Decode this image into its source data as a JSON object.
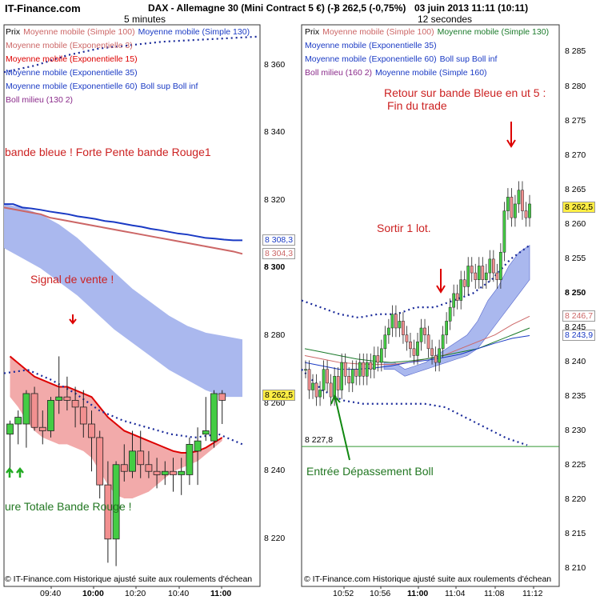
{
  "header": {
    "site": "IT-Finance.com",
    "title": "DAX - Allemagne 30 (Mini Contract 5 €) (-)",
    "price": "8 262,5 (-0,75%)",
    "date": "03 juin 2013 11:11 (10:11)",
    "timeframe_left": "5 minutes",
    "timeframe_right": "12 secondes"
  },
  "legend_left": [
    {
      "text": "Prix",
      "color": "#000000"
    },
    {
      "text": "Moyenne mobile (Simple 100)",
      "color": "#cc6666"
    },
    {
      "text": "Moyenne mobile (Simple 130)",
      "color": "#1a3ac4"
    },
    {
      "text": "Moyenne mobile (Exponentielle 3)",
      "color": "#cc6666"
    },
    {
      "text": "Moyenne mobile (Exponentielle 15)",
      "color": "#dd0000"
    },
    {
      "text": "Moyenne mobile (Exponentielle 35)",
      "color": "#1a3ac4"
    },
    {
      "text": "Moyenne mobile (Exponentielle 60)",
      "color": "#1a3ac4"
    },
    {
      "text": "Boll sup Boll inf",
      "color": "#1a3ac4"
    },
    {
      "text": "Boll milieu (130 2)",
      "color": "#8a2a8a"
    }
  ],
  "legend_right": [
    {
      "text": "Prix",
      "color": "#000000"
    },
    {
      "text": "Moyenne mobile (Simple 100)",
      "color": "#cc6666"
    },
    {
      "text": "Moyenne mobile (Simple 130)",
      "color": "#1a7a2a"
    },
    {
      "text": "Moyenne mobile (Exponentielle 35)",
      "color": "#1a3ac4"
    },
    {
      "text": "Moyenne mobile (Exponentielle 60)",
      "color": "#1a3ac4"
    },
    {
      "text": "Boll sup Boll inf",
      "color": "#1a3ac4"
    },
    {
      "text": "Boll milieu (160 2)",
      "color": "#8a2a8a"
    },
    {
      "text": "Moyenne mobile (Simple 160)",
      "color": "#1a3ac4"
    }
  ],
  "annotations": {
    "left_band": "bande bleue ! Forte Pente bande Rouge1",
    "left_signal": "Signal de vente !",
    "left_bottom": "ure Totale Bande Rouge !",
    "right_top_1": "Retour sur bande Bleue en ut 5 :",
    "right_top_2": "Fin du trade",
    "right_sortir": "Sortir 1 lot.",
    "right_entree": "Entrée Dépassement Boll"
  },
  "footer": {
    "left": "© IT-Finance.com  Historique ajusté suite aux roulements d'échean",
    "right": "© IT-Finance.com  Historique ajusté suite aux roulements d'échean"
  },
  "colors": {
    "up_candle": "#44cc44",
    "down_candle": "#f29090",
    "band_blue": "#aab8ee",
    "band_red": "#f2aaaa",
    "ema_red": "#dd0000",
    "boll_dots": "#1a2a9a",
    "sma130": "#1a3ac4",
    "sma100": "#cc6666"
  },
  "chart_data": [
    {
      "type": "candlestick",
      "title": "5 minutes",
      "x_ticks": [
        "09:40",
        "10:00",
        "10:20",
        "10:40",
        "11:00"
      ],
      "x_ticks_bold": [
        "10:00",
        "11:00"
      ],
      "y_ticks": [
        "8 360",
        "8 340",
        "8 320",
        "8 300",
        "8 280",
        "8 260",
        "8 240",
        "8 220"
      ],
      "y_ticks_bold": [
        "8 300"
      ],
      "ylim": [
        8206,
        8372
      ],
      "price_tags": [
        {
          "value": "8 308,3",
          "color": "#1a3ac4"
        },
        {
          "value": "8 304,3",
          "color": "#cc6666"
        },
        {
          "value": "8 262,5",
          "color": "#000000",
          "bg": "#ffee44"
        }
      ],
      "candles": [
        {
          "o": 8251,
          "h": 8255,
          "l": 8239,
          "c": 8254
        },
        {
          "o": 8254,
          "h": 8258,
          "l": 8248,
          "c": 8256
        },
        {
          "o": 8254,
          "h": 8264,
          "l": 8247,
          "c": 8263
        },
        {
          "o": 8263,
          "h": 8265,
          "l": 8252,
          "c": 8253
        },
        {
          "o": 8253,
          "h": 8258,
          "l": 8248,
          "c": 8252
        },
        {
          "o": 8252,
          "h": 8262,
          "l": 8250,
          "c": 8261
        },
        {
          "o": 8261,
          "h": 8274,
          "l": 8257,
          "c": 8262
        },
        {
          "o": 8262,
          "h": 8268,
          "l": 8258,
          "c": 8261
        },
        {
          "o": 8261,
          "h": 8265,
          "l": 8253,
          "c": 8259
        },
        {
          "o": 8259,
          "h": 8264,
          "l": 8250,
          "c": 8254
        },
        {
          "o": 8254,
          "h": 8258,
          "l": 8240,
          "c": 8250
        },
        {
          "o": 8250,
          "h": 8252,
          "l": 8232,
          "c": 8236
        },
        {
          "o": 8236,
          "h": 8243,
          "l": 8213,
          "c": 8220
        },
        {
          "o": 8220,
          "h": 8243,
          "l": 8212,
          "c": 8242
        },
        {
          "o": 8242,
          "h": 8248,
          "l": 8237,
          "c": 8240
        },
        {
          "o": 8240,
          "h": 8252,
          "l": 8238,
          "c": 8246
        },
        {
          "o": 8246,
          "h": 8252,
          "l": 8238,
          "c": 8242
        },
        {
          "o": 8242,
          "h": 8246,
          "l": 8238,
          "c": 8240
        },
        {
          "o": 8240,
          "h": 8244,
          "l": 8235,
          "c": 8239
        },
        {
          "o": 8239,
          "h": 8243,
          "l": 8236,
          "c": 8240
        },
        {
          "o": 8240,
          "h": 8244,
          "l": 8234,
          "c": 8239
        },
        {
          "o": 8239,
          "h": 8244,
          "l": 8233,
          "c": 8240
        },
        {
          "o": 8239,
          "h": 8250,
          "l": 8236,
          "c": 8248
        },
        {
          "o": 8246,
          "h": 8253,
          "l": 8236,
          "c": 8249
        },
        {
          "o": 8251,
          "h": 8262,
          "l": 8249,
          "c": 8252
        },
        {
          "o": 8249,
          "h": 8264,
          "l": 8247,
          "c": 8263
        },
        {
          "o": 8263,
          "h": 8264,
          "l": 8254,
          "c": 8261
        }
      ],
      "series": [
        {
          "name": "Moyenne mobile (Simple 130)",
          "values": [
            8319,
            8319,
            8318,
            8317.7,
            8317.3,
            8316.8,
            8316.4,
            8316,
            8315.4,
            8315,
            8314.6,
            8314,
            8313.7,
            8313.2,
            8312.7,
            8312.3,
            8311.7,
            8311.3,
            8310.8,
            8310.3,
            8310,
            8309.5,
            8309,
            8308.8,
            8308.5,
            8308.3,
            8308.3
          ]
        },
        {
          "name": "Moyenne mobile (Simple 100)",
          "values": [
            8318,
            8317.5,
            8317,
            8316.5,
            8316,
            8315,
            8314.5,
            8314,
            8313.5,
            8313,
            8312.5,
            8312,
            8311.5,
            8311,
            8310.5,
            8310,
            8309.5,
            8309,
            8308.5,
            8308,
            8307.5,
            8307,
            8306.5,
            8306,
            8305.5,
            8305,
            8304.3
          ]
        },
        {
          "name": "Moyenne mobile (Exponentielle 15)",
          "values": [
            8274,
            8272,
            8270,
            8268,
            8267,
            8266,
            8265,
            8265,
            8264,
            8263,
            8262,
            8259,
            8256,
            8254,
            8252,
            8251,
            8250,
            8249,
            8248,
            8247,
            8246,
            8245.5,
            8245.5,
            8246,
            8247,
            8248.5,
            8250
          ]
        }
      ],
      "boll_sup": [
        8358,
        8360,
        8363,
        8365,
        8366,
        8367,
        8367.5,
        8368,
        8368.5
      ],
      "boll_inf": [
        8269,
        8270,
        8267,
        8263,
        8258,
        8255,
        8253,
        8251,
        8250,
        8251,
        8248
      ],
      "band_blue_top": [
        8319,
        8318,
        8316,
        8313,
        8309,
        8304,
        8299,
        8294,
        8290,
        8286,
        8283,
        8281,
        8280,
        8279
      ],
      "band_blue_bottom": [
        8306,
        8303,
        8300,
        8296,
        8292,
        8287,
        8282,
        8278,
        8274,
        8270,
        8267,
        8264,
        8262,
        8262
      ]
    },
    {
      "type": "candlestick",
      "title": "12 secondes",
      "x_ticks": [
        "10:52",
        "10:56",
        "11:00",
        "11:04",
        "11:08",
        "11:12"
      ],
      "x_ticks_bold": [
        "11:00"
      ],
      "y_ticks": [
        "8 285",
        "8 280",
        "8 275",
        "8 270",
        "8 265",
        "8 260",
        "8 255",
        "8 250",
        "8 245",
        "8 240",
        "8 235",
        "8 230",
        "8 225",
        "8 220",
        "8 215",
        "8 210"
      ],
      "y_ticks_bold": [
        "8 250"
      ],
      "ylim": [
        8207.5,
        8289
      ],
      "price_tags": [
        {
          "value": "8 262,5",
          "color": "#000000",
          "bg": "#ffee44"
        },
        {
          "value": "8 246,7",
          "color": "#cc6666"
        },
        {
          "value": "8 243,9",
          "color": "#1a3ac4"
        }
      ],
      "hline": {
        "value": 8227.8,
        "label": "8 227,8",
        "color": "#339933"
      },
      "close_series": [
        8239,
        8236,
        8237,
        8235,
        8236,
        8239,
        8237,
        8235,
        8238,
        8236,
        8240,
        8238,
        8237,
        8239,
        8238,
        8240,
        8238,
        8240,
        8239,
        8241,
        8240,
        8242,
        8244,
        8245,
        8247,
        8245,
        8246,
        8244,
        8243,
        8242,
        8241,
        8243,
        8245,
        8244,
        8242,
        8241,
        8240,
        8242,
        8244,
        8246,
        8248,
        8250,
        8249,
        8252,
        8251,
        8254,
        8253,
        8252,
        8254,
        8252,
        8253,
        8255,
        8253,
        8252,
        8256,
        8262,
        8264,
        8261,
        8263,
        8265,
        8262,
        8261,
        8263
      ],
      "boll_sup": [
        8249,
        8248,
        8247,
        8246.5,
        8247,
        8247,
        8248,
        8248,
        8249,
        8250,
        8252,
        8255,
        8257
      ],
      "boll_inf": [
        8239,
        8236,
        8234.5,
        8234,
        8234,
        8234,
        8234,
        8233.5,
        8232,
        8230.5,
        8229,
        8228
      ],
      "band_top": [
        8240,
        8240,
        8239,
        8239.5,
        8240,
        8241,
        8242,
        8243,
        8244,
        8246,
        8249,
        8251,
        8254,
        8256,
        8257
      ],
      "band_bottom": [
        8239,
        8239,
        8238,
        8238.5,
        8239,
        8239.5,
        8240,
        8240.5,
        8241,
        8242,
        8244,
        8246,
        8248,
        8250,
        8252
      ]
    }
  ]
}
